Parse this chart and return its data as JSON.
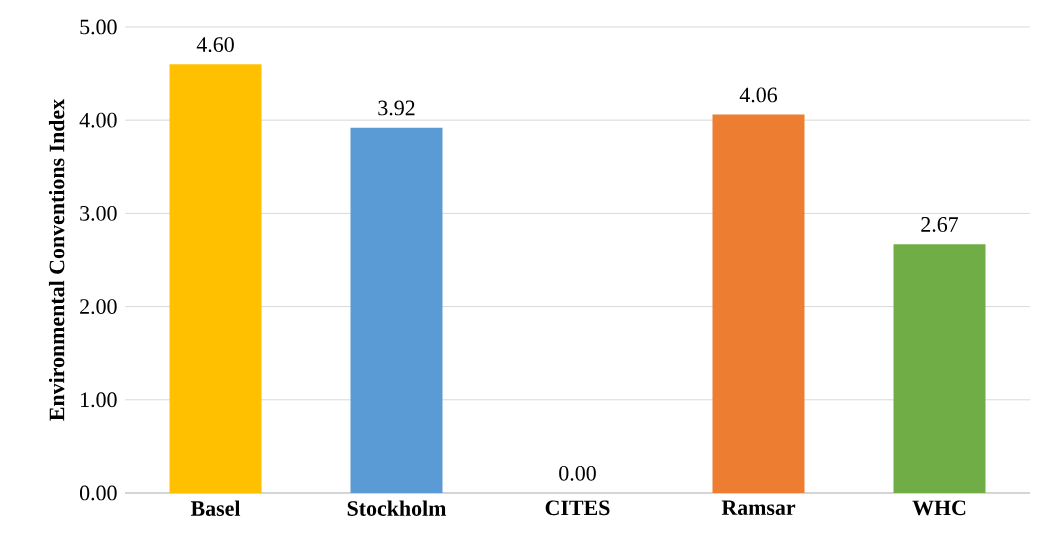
{
  "chart_data": {
    "type": "bar",
    "ylabel": "Environmental Conventions Index",
    "categories": [
      "Basel",
      "Stockholm",
      "CITES",
      "Ramsar",
      "WHC"
    ],
    "values": [
      4.6,
      3.92,
      0.0,
      4.06,
      2.67
    ],
    "colors": [
      "#ffc000",
      "#5b9bd5",
      "#a5a5a5",
      "#ed7d31",
      "#70ad47"
    ],
    "value_labels": [
      "4.60",
      "3.92",
      "0.00",
      "4.06",
      "2.67"
    ],
    "ylim": [
      0,
      5
    ],
    "yticks": [
      {
        "value": 0,
        "label": "0.00"
      },
      {
        "value": 1,
        "label": "1.00"
      },
      {
        "value": 2,
        "label": "2.00"
      },
      {
        "value": 3,
        "label": "3.00"
      },
      {
        "value": 4,
        "label": "4.00"
      },
      {
        "value": 5,
        "label": "5.00"
      }
    ],
    "grid": "y"
  }
}
